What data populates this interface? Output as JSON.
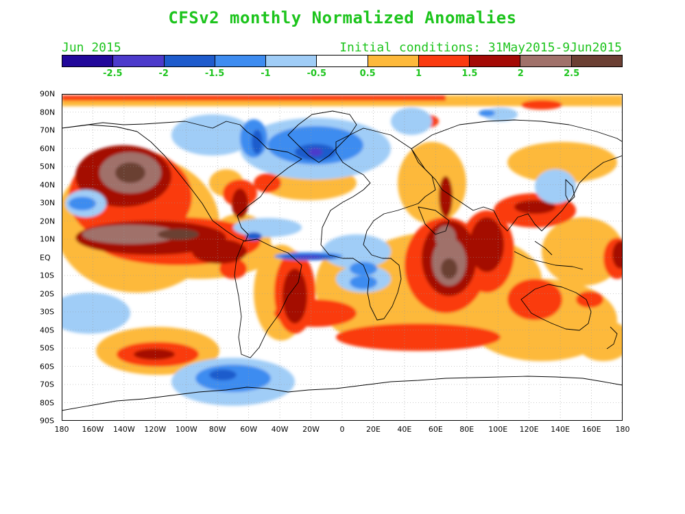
{
  "title": "CFSv2 monthly Normalized Anomalies",
  "month_label": "Jun 2015",
  "initial_conditions": "Initial conditions: 31May2015-9Jun2015",
  "legend": {
    "colors": [
      "#22089a",
      "#4c3acb",
      "#1e5bcc",
      "#3e8cf0",
      "#a0cdf7",
      "#ffffff",
      "#fdb93b",
      "#fa3b10",
      "#a40a05",
      "#a0716a",
      "#6b3f33"
    ],
    "labels": [
      "-2.5",
      "-2",
      "-1.5",
      "-1",
      "-0.5",
      "0.5",
      "1",
      "1.5",
      "2",
      "2.5"
    ]
  },
  "lat_labels": [
    "90N",
    "80N",
    "70N",
    "60N",
    "50N",
    "40N",
    "30N",
    "20N",
    "10N",
    "EQ",
    "10S",
    "20S",
    "30S",
    "40S",
    "50S",
    "60S",
    "70S",
    "80S",
    "90S"
  ],
  "lon_labels": [
    "180",
    "160W",
    "140W",
    "120W",
    "100W",
    "80W",
    "60W",
    "40W",
    "20W",
    "0",
    "20E",
    "40E",
    "60E",
    "80E",
    "100E",
    "120E",
    "140E",
    "160E",
    "180"
  ]
}
